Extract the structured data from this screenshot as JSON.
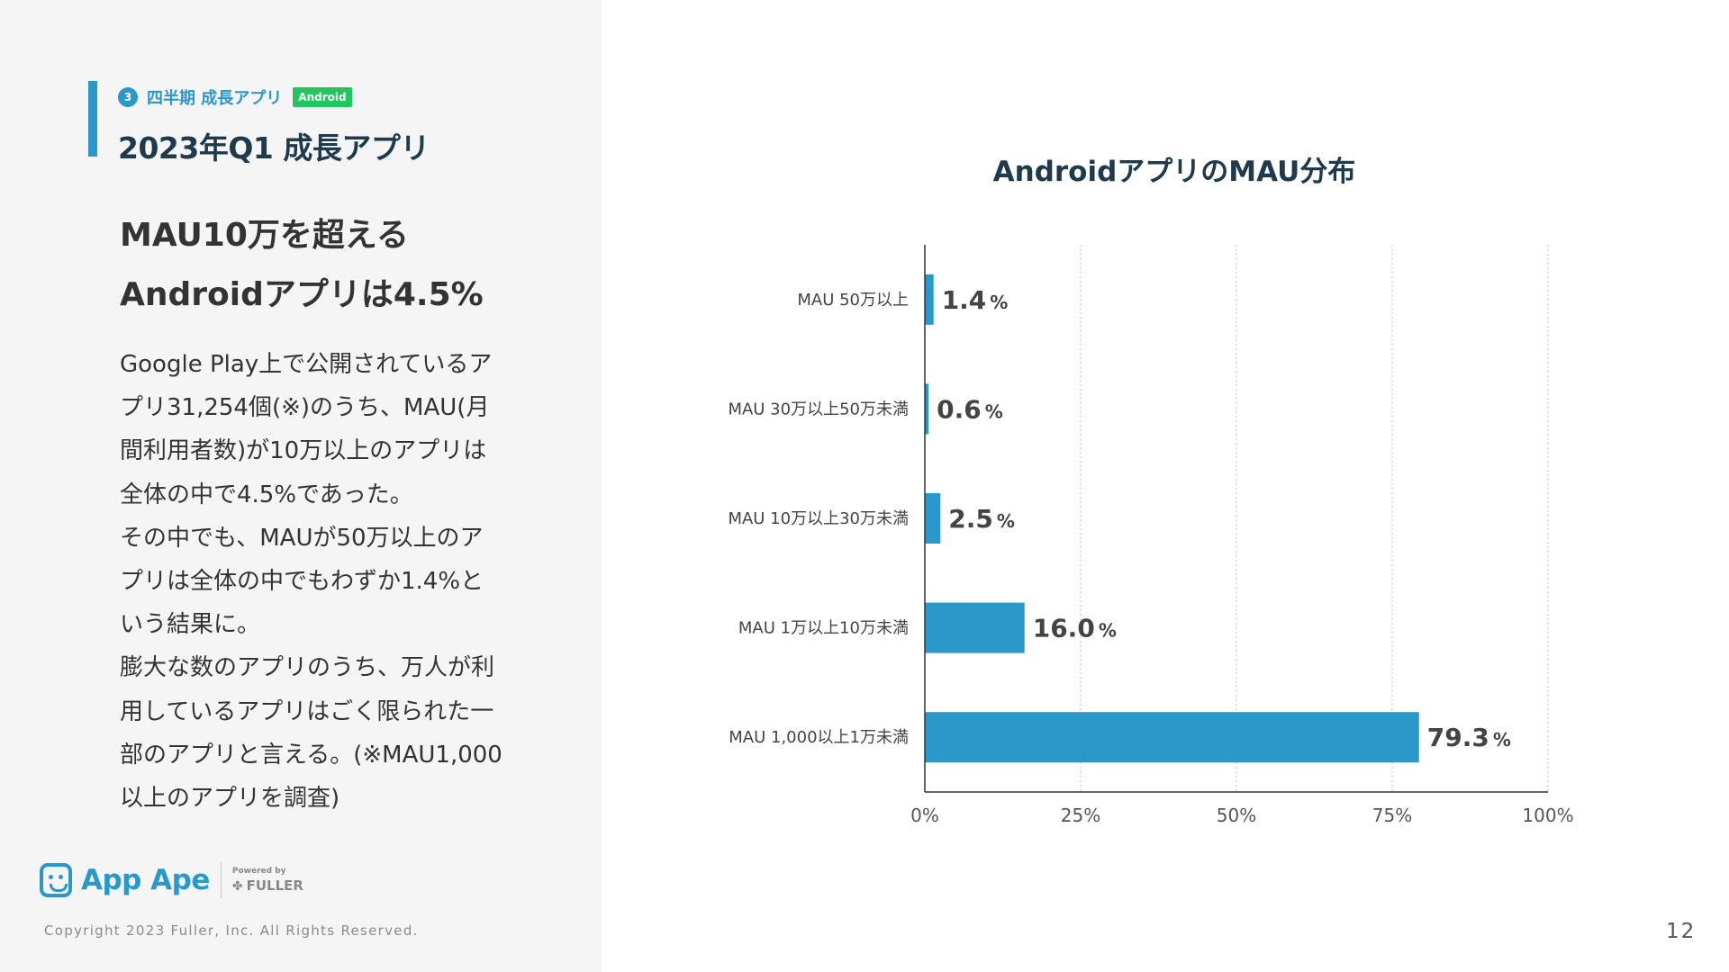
{
  "section": {
    "number": "3",
    "label": "四半期 成長アプリ",
    "badge": "Android",
    "accent_color": "#2a98c8",
    "badge_color": "#22c55e"
  },
  "page_title": "2023年Q1 成長アプリ",
  "headline": {
    "line1": "MAU10万を超える",
    "line2": "Androidアプリは4.5%"
  },
  "body_lines": [
    "Google Play上で公開されているア",
    "プリ31,254個(※)のうち、MAU(月",
    "間利用者数)が10万以上のアプリは",
    "全体の中で4.5%であった。",
    "その中でも、MAUが50万以上のア",
    "プリは全体の中でもわずか1.4%と",
    "いう結果に。",
    "膨大な数のアプリのうち、万人が利",
    "用しているアプリはごく限られた一",
    "部のアプリと言える。(※MAU1,000",
    "以上のアプリを調査)"
  ],
  "footer": {
    "logo_text": "App Ape",
    "powered_by": "Powered by",
    "fuller": "FULLER",
    "logo_icon": "app-ape-monkey-icon",
    "copyright": "Copyright 2023 Fuller, Inc. All Rights Reserved.",
    "page_number": "12"
  },
  "chart_data": {
    "type": "bar",
    "orientation": "horizontal",
    "title": "AndroidアプリのMAU分布",
    "categories": [
      "MAU 50万以上",
      "MAU 30万以上50万未満",
      "MAU 10万以上30万未満",
      "MAU 1万以上10万未満",
      "MAU 1,000以上1万未満"
    ],
    "values": [
      1.4,
      0.6,
      2.5,
      16.0,
      79.3
    ],
    "value_labels": [
      "1.4",
      "0.6",
      "2.5",
      "16.0",
      "79.3"
    ],
    "value_unit": "%",
    "xlim": [
      0,
      100
    ],
    "xticks": [
      0,
      25,
      50,
      75,
      100
    ],
    "xtick_labels": [
      "0%",
      "25%",
      "50%",
      "75%",
      "100%"
    ],
    "grid": "vertical dashed",
    "bar_color": "#2a98c8"
  }
}
